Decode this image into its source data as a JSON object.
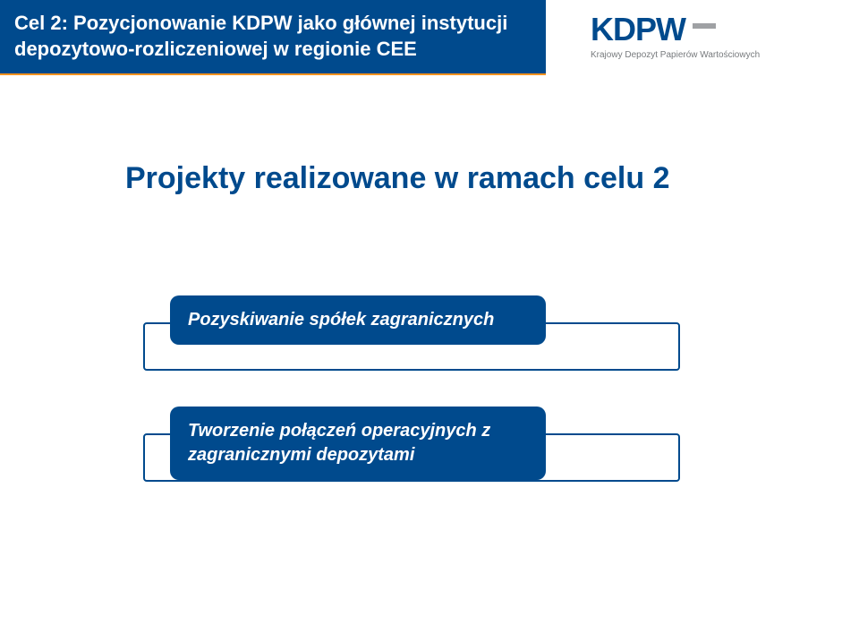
{
  "header": {
    "title": "Cel 2: Pozycjonowanie KDPW jako głównej instytucji depozytowo-rozliczeniowej w regionie CEE"
  },
  "logo": {
    "text": "KDPW",
    "subtitle": "Krajowy Depozyt Papierów Wartościowych"
  },
  "main_title": "Projekty realizowane w ramach celu 2",
  "boxes": [
    {
      "label": "Pozyskiwanie spółek zagranicznych"
    },
    {
      "label": "Tworzenie połączeń operacyjnych z zagranicznymi depozytami"
    }
  ],
  "colors": {
    "primary": "#004a8d",
    "accent": "#f7931e",
    "bg": "#ffffff",
    "logo_gray": "#9fa1a4",
    "sub_gray": "#777a7d"
  }
}
